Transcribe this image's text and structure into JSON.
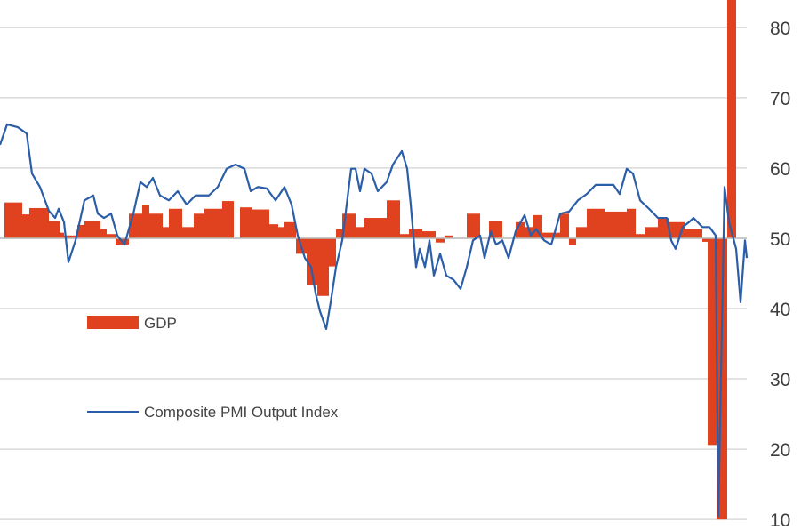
{
  "chart_data": {
    "type": "bar+line",
    "title": "",
    "xlabel": "",
    "ylabel": "",
    "ylim": [
      8.5,
      83.9
    ],
    "xlim": [
      0,
      84
    ],
    "baseline": 50,
    "yticks": [
      10,
      20,
      30,
      40,
      50,
      60,
      70,
      80
    ],
    "ytick_labels": [
      "10",
      "20",
      "30",
      "40",
      "50",
      "60",
      "70",
      "80"
    ],
    "grid": true,
    "legend_position": "bottom-left",
    "colors": {
      "gdp": "#e0411e",
      "pmi": "#2b5ea8",
      "grid": "#d9d9d9"
    },
    "series": [
      {
        "name": "GDP",
        "kind": "bar",
        "bars": [
          [
            0.5,
            2.5,
            55.1
          ],
          [
            2.5,
            3.3,
            53.4
          ],
          [
            3.3,
            5.5,
            54.3
          ],
          [
            5.5,
            6.7,
            52.5
          ],
          [
            6.7,
            7.2,
            50.8
          ],
          [
            7.2,
            8.7,
            50.4
          ],
          [
            8.7,
            9.5,
            51.9
          ],
          [
            9.5,
            11.3,
            52.5
          ],
          [
            11.3,
            12,
            51.3
          ],
          [
            12,
            13,
            50.6
          ],
          [
            13,
            14.5,
            49.1
          ],
          [
            14.5,
            16,
            53.5
          ],
          [
            16,
            16.8,
            54.8
          ],
          [
            16.8,
            18.3,
            53.5
          ],
          [
            18.3,
            19,
            51.6
          ],
          [
            19,
            20.5,
            54.2
          ],
          [
            20.5,
            21.8,
            51.6
          ],
          [
            21.8,
            23,
            53.5
          ],
          [
            23,
            25,
            54.2
          ],
          [
            25,
            26.3,
            55.3
          ],
          [
            26.3,
            27,
            50
          ],
          [
            27,
            28.3,
            54.4
          ],
          [
            28.3,
            30.3,
            54.1
          ],
          [
            30.3,
            31.3,
            52
          ],
          [
            31.3,
            32,
            51.6
          ],
          [
            32,
            33.3,
            52.3
          ],
          [
            33.3,
            34.5,
            47.8
          ],
          [
            34.5,
            35.7,
            43.4
          ],
          [
            35.7,
            37,
            41.8
          ],
          [
            37,
            37.8,
            46
          ],
          [
            37.8,
            38.5,
            51.3
          ],
          [
            38.5,
            40,
            53.5
          ],
          [
            40,
            41,
            51.6
          ],
          [
            41,
            43.5,
            52.9
          ],
          [
            43.5,
            45,
            55.4
          ],
          [
            45,
            46,
            50.6
          ],
          [
            46,
            47.5,
            51.3
          ],
          [
            47.5,
            49,
            51
          ],
          [
            49,
            50,
            49.4
          ],
          [
            50,
            51,
            50.4
          ],
          [
            51,
            52.5,
            50
          ],
          [
            52.5,
            54,
            53.5
          ],
          [
            54,
            55,
            50
          ],
          [
            55,
            56.5,
            52.5
          ],
          [
            56.5,
            58,
            50
          ],
          [
            58,
            59,
            52.3
          ],
          [
            59,
            60,
            51.6
          ],
          [
            60,
            61,
            53.3
          ],
          [
            61,
            63,
            50.8
          ],
          [
            63,
            64,
            53.5
          ],
          [
            64,
            64.8,
            49.1
          ],
          [
            64.8,
            66,
            51.6
          ],
          [
            66,
            68,
            54.2
          ],
          [
            68,
            70.5,
            53.8
          ],
          [
            70.5,
            71.5,
            54.2
          ],
          [
            71.5,
            72.5,
            50.6
          ],
          [
            72.5,
            74,
            51.6
          ],
          [
            74,
            75.2,
            52.9
          ],
          [
            75.2,
            77,
            52.3
          ],
          [
            77,
            79,
            51.3
          ],
          [
            79,
            79.6,
            49.5
          ],
          [
            79.6,
            80.6,
            20.6
          ],
          [
            80.6,
            81.8,
            10
          ],
          [
            81.8,
            82.8,
            86
          ]
        ]
      },
      {
        "name": "Composite PMI Output Index",
        "kind": "line",
        "points": [
          [
            0,
            63.3
          ],
          [
            0.8,
            66.2
          ],
          [
            2,
            65.8
          ],
          [
            3,
            64.9
          ],
          [
            3.6,
            59.2
          ],
          [
            4.5,
            57.3
          ],
          [
            5.5,
            53.9
          ],
          [
            6.2,
            52.9
          ],
          [
            6.6,
            54.2
          ],
          [
            7.2,
            52.3
          ],
          [
            7.7,
            46.6
          ],
          [
            8.5,
            49.7
          ],
          [
            9.5,
            55.4
          ],
          [
            10.5,
            56.1
          ],
          [
            11,
            53.5
          ],
          [
            11.7,
            52.9
          ],
          [
            12.5,
            53.5
          ],
          [
            13.2,
            50.4
          ],
          [
            14,
            49.1
          ],
          [
            15,
            53.5
          ],
          [
            15.8,
            58
          ],
          [
            16.5,
            57.3
          ],
          [
            17.2,
            58.6
          ],
          [
            18,
            56.1
          ],
          [
            19,
            55.4
          ],
          [
            20,
            56.7
          ],
          [
            21,
            54.8
          ],
          [
            22,
            56.1
          ],
          [
            23.5,
            56.1
          ],
          [
            24.5,
            57.3
          ],
          [
            25.5,
            59.9
          ],
          [
            26.5,
            60.5
          ],
          [
            27.5,
            59.9
          ],
          [
            28.2,
            56.7
          ],
          [
            29,
            57.3
          ],
          [
            30,
            57.1
          ],
          [
            31,
            55.4
          ],
          [
            32,
            57.3
          ],
          [
            32.8,
            54.8
          ],
          [
            33.5,
            50.4
          ],
          [
            34.3,
            47.2
          ],
          [
            35,
            45.9
          ],
          [
            35.5,
            42.2
          ],
          [
            36,
            39.6
          ],
          [
            36.7,
            37.1
          ],
          [
            37.2,
            40.9
          ],
          [
            37.8,
            45.9
          ],
          [
            38.5,
            49.7
          ],
          [
            39,
            54.8
          ],
          [
            39.5,
            59.9
          ],
          [
            40,
            59.9
          ],
          [
            40.5,
            56.7
          ],
          [
            41,
            59.9
          ],
          [
            41.8,
            59.2
          ],
          [
            42.5,
            56.7
          ],
          [
            43.5,
            58
          ],
          [
            44.2,
            60.5
          ],
          [
            45.2,
            62.4
          ],
          [
            45.8,
            59.9
          ],
          [
            46.2,
            54.8
          ],
          [
            46.8,
            45.9
          ],
          [
            47.2,
            48.5
          ],
          [
            47.8,
            45.9
          ],
          [
            48.3,
            49.7
          ],
          [
            48.8,
            44.7
          ],
          [
            49.5,
            47.8
          ],
          [
            50.2,
            44.7
          ],
          [
            51,
            44.1
          ],
          [
            51.8,
            42.8
          ],
          [
            52.5,
            45.9
          ],
          [
            53.2,
            49.7
          ],
          [
            54,
            50.4
          ],
          [
            54.5,
            47.2
          ],
          [
            55.2,
            51
          ],
          [
            55.8,
            49.1
          ],
          [
            56.5,
            49.7
          ],
          [
            57.2,
            47.2
          ],
          [
            58,
            51
          ],
          [
            59,
            53.3
          ],
          [
            59.7,
            50.4
          ],
          [
            60.3,
            51.3
          ],
          [
            61.2,
            49.7
          ],
          [
            62,
            49.1
          ],
          [
            63,
            53.5
          ],
          [
            64,
            53.8
          ],
          [
            65,
            55.4
          ],
          [
            66,
            56.3
          ],
          [
            67,
            57.6
          ],
          [
            68,
            57.6
          ],
          [
            69,
            57.6
          ],
          [
            69.7,
            56.3
          ],
          [
            70.5,
            59.9
          ],
          [
            71.2,
            59.2
          ],
          [
            72,
            55.4
          ],
          [
            73,
            54.2
          ],
          [
            74,
            52.9
          ],
          [
            75,
            52.9
          ],
          [
            75.5,
            49.7
          ],
          [
            76,
            48.5
          ],
          [
            76.8,
            51.6
          ],
          [
            77.5,
            52.3
          ],
          [
            78,
            52.9
          ],
          [
            79,
            51.6
          ],
          [
            79.8,
            51.6
          ],
          [
            80.5,
            50.4
          ],
          [
            80.8,
            10.5
          ],
          [
            81.5,
            57.3
          ],
          [
            82,
            52.3
          ],
          [
            82.8,
            48.5
          ],
          [
            83.3,
            40.9
          ],
          [
            83.8,
            49.7
          ],
          [
            84,
            47.2
          ]
        ]
      }
    ],
    "legend": [
      {
        "label": "GDP",
        "swatch": "bar"
      },
      {
        "label": "Composite PMI Output Index",
        "swatch": "line"
      }
    ]
  }
}
